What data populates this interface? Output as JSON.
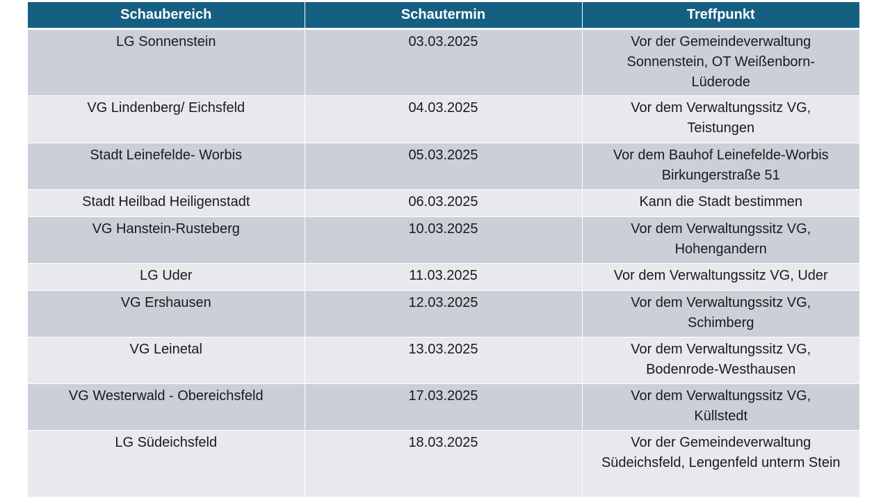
{
  "table": {
    "headers": [
      "Schaubereich",
      "Schautermin",
      "Treffpunkt"
    ],
    "rows": [
      {
        "area": "LG Sonnenstein",
        "date": "03.03.2025",
        "place": "Vor der Gemeindeverwaltung Sonnenstein, OT Weißenborn-Lüderode"
      },
      {
        "area": "VG Lindenberg/ Eichsfeld",
        "date": "04.03.2025",
        "place": "Vor dem Verwaltungssitz VG, Teistungen"
      },
      {
        "area": "Stadt Leinefelde- Worbis",
        "date": "05.03.2025",
        "place": "Vor dem Bauhof Leinefelde-Worbis Birkungerstraße 51"
      },
      {
        "area": "Stadt Heilbad Heiligenstadt",
        "date": "06.03.2025",
        "place": "Kann die Stadt bestimmen"
      },
      {
        "area": "VG Hanstein-Rusteberg",
        "date": "10.03.2025",
        "place": "Vor dem Verwaltungssitz VG, Hohengandern"
      },
      {
        "area": "LG Uder",
        "date": "11.03.2025",
        "place": "Vor dem Verwaltungssitz VG, Uder"
      },
      {
        "area": "VG Ershausen",
        "date": "12.03.2025",
        "place": "Vor dem Verwaltungssitz VG, Schimberg"
      },
      {
        "area": "VG Leinetal",
        "date": "13.03.2025",
        "place": "Vor dem Verwaltungssitz VG, Bodenrode-Westhausen"
      },
      {
        "area": "VG Westerwald - Obereichsfeld",
        "date": "17.03.2025",
        "place": "Vor dem Verwaltungssitz VG, Küllstedt"
      },
      {
        "area": "LG Südeichsfeld",
        "date": "18.03.2025",
        "place": "Vor der Gemeindeverwaltung Südeichsfeld, Lengenfeld unterm Stein"
      }
    ]
  },
  "colors": {
    "header_bg": "#156082",
    "row_odd_bg": "#cbcfd7",
    "row_even_bg": "#e7e9ec"
  }
}
